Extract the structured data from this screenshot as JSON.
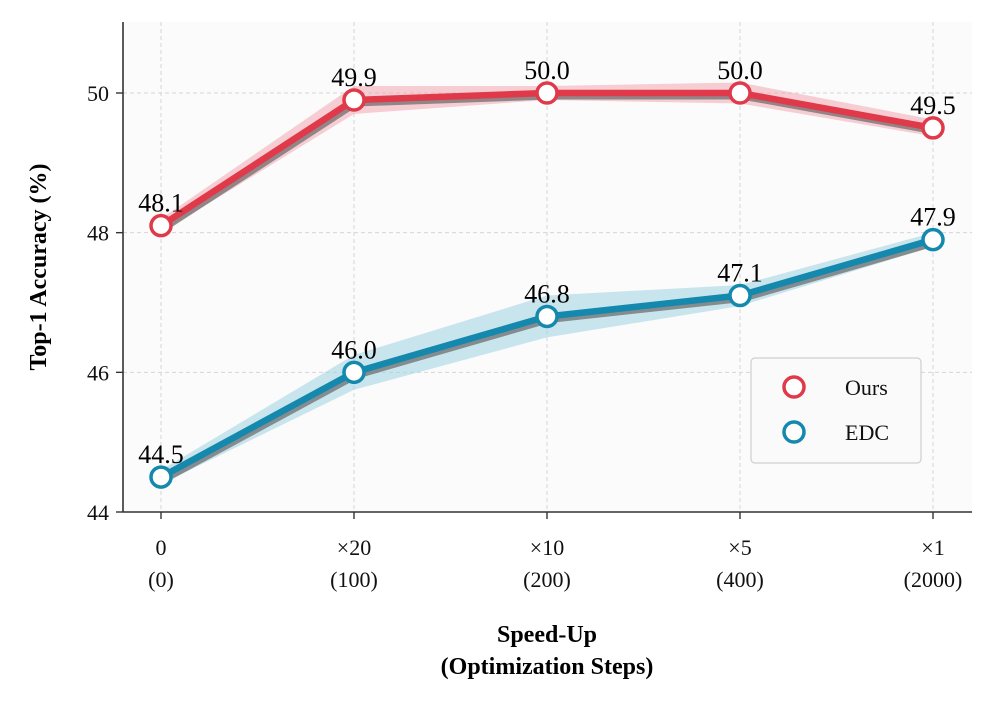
{
  "chart_data": {
    "type": "line",
    "title": "",
    "xlabel_lines": [
      "Speed-Up",
      "(Optimization Steps)"
    ],
    "ylabel": "Top-1 Accuracy (%)",
    "categories": [
      {
        "top": "0",
        "bottom": "(0)"
      },
      {
        "top": "×20",
        "bottom": "(100)"
      },
      {
        "top": "×10",
        "bottom": "(200)"
      },
      {
        "top": "×5",
        "bottom": "(400)"
      },
      {
        "top": "×1",
        "bottom": "(2000)"
      }
    ],
    "ylim": [
      44,
      51
    ],
    "yticks": [
      44,
      46,
      48,
      50
    ],
    "grid": true,
    "legend_position": "lower-right",
    "series": [
      {
        "name": "Ours",
        "color": "#e0394a",
        "band_color": "#f2a7b0",
        "values": [
          48.1,
          49.9,
          50.0,
          50.0,
          49.5
        ],
        "labels": [
          "48.1",
          "49.9",
          "50.0",
          "50.0",
          "49.5"
        ],
        "band_halfwidth": [
          0.1,
          0.2,
          0.1,
          0.15,
          0.12
        ]
      },
      {
        "name": "EDC",
        "color": "#1488ad",
        "band_color": "#9fd3e3",
        "values": [
          44.5,
          46.0,
          46.8,
          47.1,
          47.9
        ],
        "labels": [
          "44.5",
          "46.0",
          "46.8",
          "47.1",
          "47.9"
        ],
        "band_halfwidth": [
          0.1,
          0.25,
          0.3,
          0.15,
          0.1
        ]
      }
    ]
  }
}
